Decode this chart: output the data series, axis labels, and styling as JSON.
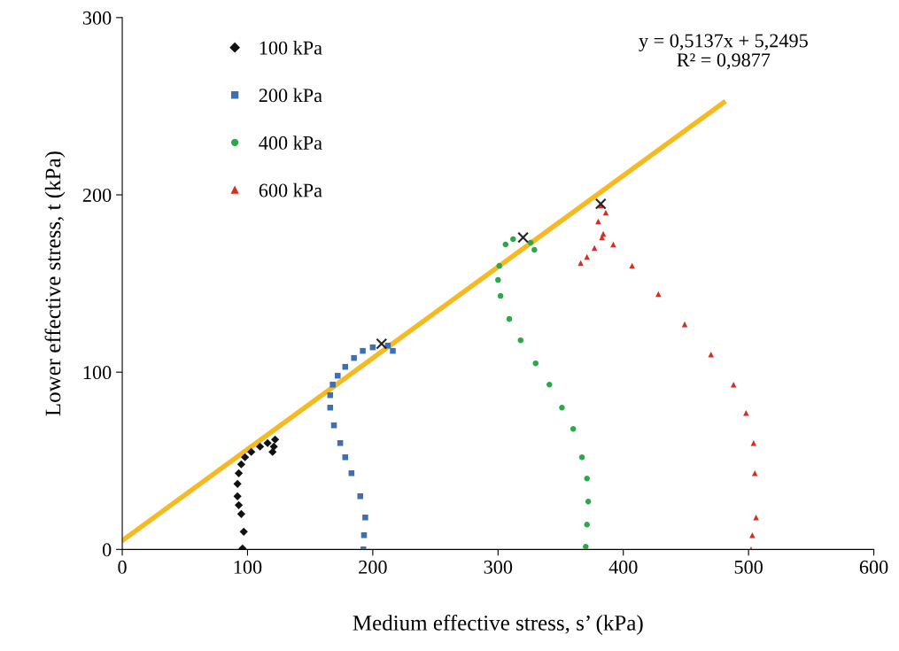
{
  "chart_data": {
    "type": "scatter",
    "xlabel": "Medium effective stress, s’ (kPa)",
    "ylabel": "Lower effective stress, t (kPa)",
    "xlim": [
      0,
      600
    ],
    "xticks": [
      0,
      100,
      200,
      300,
      400,
      500,
      600
    ],
    "ylim": [
      0,
      300
    ],
    "yticks": [
      0,
      100,
      200,
      300
    ],
    "grid": false,
    "legend": "top left",
    "annotations": [
      "y = 0,5137x + 5,2495\nR² = 0,9877"
    ],
    "series": [
      {
        "name": "100 kPa",
        "color": "#111111",
        "marker": "diamond",
        "x": [
          96,
          97,
          95,
          93,
          92,
          92,
          93,
          95,
          98,
          103,
          110,
          116,
          122,
          121,
          120
        ],
        "values": [
          0.5,
          10,
          20,
          25,
          30,
          37,
          43,
          48,
          52,
          55,
          58,
          60,
          62,
          58,
          55
        ]
      },
      {
        "name": "200 kPa",
        "color": "#3d6fb5",
        "marker": "square",
        "x": [
          192.5,
          193,
          194,
          190,
          183,
          178,
          174,
          169,
          166,
          166,
          168,
          172,
          178,
          185,
          192,
          200,
          212,
          216
        ],
        "values": [
          0,
          8,
          18,
          30,
          43,
          52,
          60,
          70,
          80,
          87,
          93,
          98,
          103,
          108,
          112,
          114,
          115,
          112
        ]
      },
      {
        "name": "400 kPa",
        "color": "#2aa84a",
        "marker": "circle",
        "x": [
          370,
          371,
          372,
          371,
          367,
          360,
          351,
          341,
          330,
          318,
          309,
          302,
          300,
          301,
          306,
          312,
          326,
          329
        ],
        "values": [
          1.5,
          14,
          27,
          40,
          52,
          68,
          80,
          93,
          105,
          118,
          130,
          143,
          152,
          160,
          172,
          175,
          173,
          169
        ]
      },
      {
        "name": "600 kPa",
        "color": "#d42f24",
        "marker": "triangle",
        "x": [
          502,
          503,
          506,
          505,
          504,
          498,
          488,
          470,
          449,
          428,
          407,
          392,
          384,
          380,
          382,
          386,
          383,
          377,
          371,
          366
        ],
        "values": [
          0,
          8,
          18,
          43,
          60,
          77,
          93,
          110,
          127,
          144,
          160,
          172,
          178,
          185,
          194,
          190,
          176,
          170,
          165,
          161.5
        ]
      },
      {
        "color": "#222222",
        "marker": "cross",
        "x": [
          207,
          320,
          382
        ],
        "values": [
          116,
          176,
          195
        ]
      },
      {
        "type": "line",
        "color": "#f5b922",
        "marker": "none",
        "x": [
          0,
          480
        ],
        "values": [
          5,
          252
        ]
      }
    ]
  }
}
